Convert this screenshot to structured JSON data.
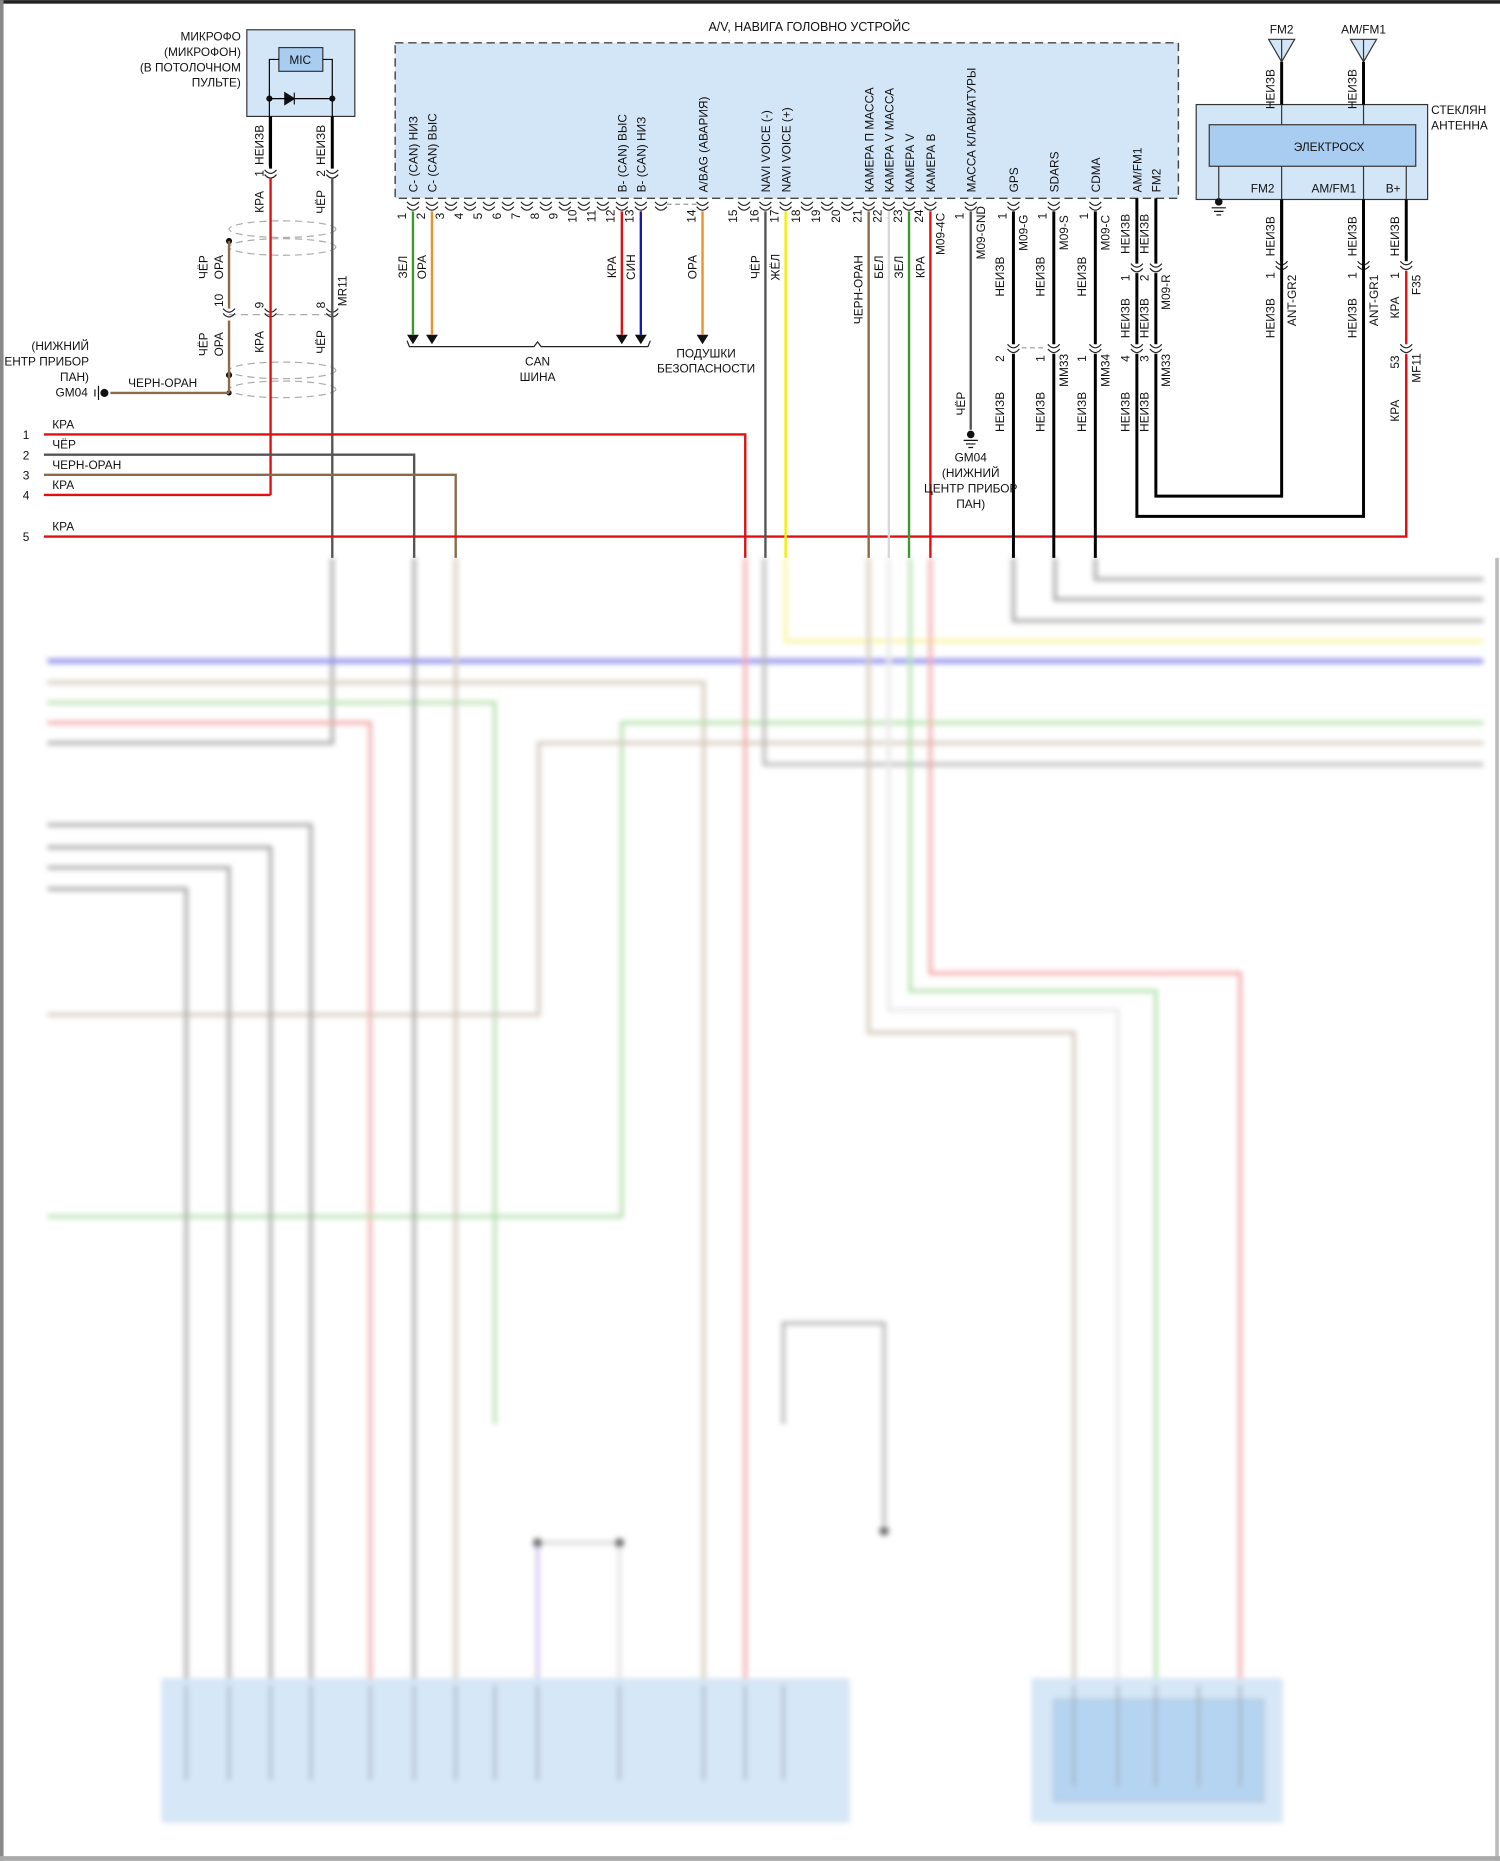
{
  "head_unit": {
    "title": "A/V, НАВИГА ГОЛОВНО УСТРОЙС",
    "pin_numbers": [
      "1",
      "2",
      "3",
      "4",
      "5",
      "6",
      "7",
      "8",
      "9",
      "10",
      "11",
      "12",
      "13",
      "14",
      "15",
      "16",
      "17",
      "18",
      "19",
      "20",
      "21",
      "22",
      "23",
      "24"
    ],
    "pin_labels": [
      {
        "pin": 1,
        "label": "C- (CAN) НИЗ"
      },
      {
        "pin": 2,
        "label": "C- (CAN) ВЫС"
      },
      {
        "pin": 12,
        "label": "B- (CAN) ВЫС"
      },
      {
        "pin": 13,
        "label": "B- (CAN) НИЗ"
      },
      {
        "pin": 14,
        "label": "A/BAG (АВАРИЯ)"
      },
      {
        "pin": 16,
        "label": "NAVI VOICE (-)"
      },
      {
        "pin": 17,
        "label": "NAVI VOICE (+)"
      },
      {
        "pin": 21,
        "label": "КАМЕРА П МАССА"
      },
      {
        "pin": 22,
        "label": "КАМЕРА V МАССА"
      },
      {
        "pin": 23,
        "label": "КАМЕРА V"
      },
      {
        "pin": 24,
        "label": "КАМЕРА В"
      }
    ],
    "wires": [
      {
        "pin": 1,
        "label": "ЗЕЛ",
        "color": "#3c9a2c"
      },
      {
        "pin": 2,
        "label": "ОРА",
        "color": "#e8922a"
      },
      {
        "pin": 12,
        "label": "КРА",
        "color": "#e01010"
      },
      {
        "pin": 13,
        "label": "СИН",
        "color": "#1a1aa8"
      },
      {
        "pin": 14,
        "label": "ОРА",
        "color": "#e8922a"
      },
      {
        "pin": 16,
        "label": "ЧЁР",
        "color": "#555555"
      },
      {
        "pin": 17,
        "label": "ЖЁЛ",
        "color": "#f2f000"
      },
      {
        "pin": 21,
        "label": "ЧЕРН-ОРАН",
        "color": "#8a6a48"
      },
      {
        "pin": 22,
        "label": "БЕЛ",
        "color": "#d8d8d8"
      },
      {
        "pin": 23,
        "label": "ЗЕЛ",
        "color": "#3c9a2c"
      },
      {
        "pin": 24,
        "label": "КРА",
        "color": "#e01010"
      }
    ],
    "camera_connector": "M09-4C"
  },
  "can_bus": {
    "label_lines": [
      "CAN",
      "ШИНА"
    ]
  },
  "airbag": {
    "label_lines": [
      "ПОДУШКИ",
      "БЕЗОПАСНОСТИ"
    ]
  },
  "aux_connectors": [
    {
      "title": "МАССА КЛАВИАТУРЫ",
      "pin": "1",
      "connector": "M09-GND",
      "wire_lower": "ЧЁР"
    },
    {
      "title": "GPS",
      "pin": "1",
      "connector": "M09-G",
      "wire_upper": "НЕИЗВ",
      "inline_pin": "2",
      "wire_lower": "НЕИЗВ"
    },
    {
      "title": "SDARS",
      "pin": "1",
      "connector": "M09-S",
      "wire_upper": "НЕИЗВ",
      "inline_pin": "1",
      "inline_connector": "MM33",
      "wire_lower": "НЕИЗВ"
    },
    {
      "title": "CDMA",
      "pin": "1",
      "connector": "M09-C",
      "wire_upper": "НЕИЗВ",
      "inline_pin": "1",
      "inline_connector": "MM34",
      "wire_lower": "НЕИЗВ"
    },
    {
      "title": "AM/FM1",
      "wire_top": "НЕИЗВ",
      "pin": "1",
      "wire_upper": "НЕИЗВ",
      "inline_pin": "4",
      "wire_lower": "НЕИЗВ"
    },
    {
      "title": "FM2",
      "wire_top": "НЕИЗВ",
      "pin": "2",
      "connector": "M09-R",
      "wire_upper": "НЕИЗВ",
      "inline_pin": "3",
      "inline_connector": "MM33",
      "wire_lower": "НЕИЗВ"
    }
  ],
  "ground_center": {
    "id": "GM04",
    "location_lines": [
      "(НИЖНИЙ",
      "ЦЕНТР ПРИБОР",
      "ПАН)"
    ]
  },
  "microphone": {
    "name_lines": [
      "МИКРОФО",
      "(МИКРОФОН)",
      "(В ПОТОЛОЧНОМ",
      "ПУЛЬТЕ)"
    ],
    "chip": "MIC",
    "pins": [
      {
        "num": "1",
        "wire_top": "НЕИЗВ",
        "wire_bottom": "КРА"
      },
      {
        "num": "2",
        "wire_top": "НЕИЗВ",
        "wire_bottom": "ЧЁР"
      }
    ]
  },
  "shield_connector": {
    "id": "MR11",
    "pins": [
      "10",
      "9",
      "8"
    ],
    "drain_upper": [
      "ЧЁР",
      "ОРА"
    ],
    "drain_lower": [
      "ЧЁР",
      "ОРА"
    ],
    "wire_9": "КРА",
    "wire_8": "ЧЁР",
    "ground_wire": "ЧЕРН-ОРАН"
  },
  "ground_left": {
    "id": "GM04",
    "location_lines": [
      "(НИЖНИЙ",
      "ЕНТР ПРИБОР",
      "ПАН)"
    ]
  },
  "harness_lines": [
    {
      "num": "1",
      "color_name": "КРА",
      "color": "#e01010"
    },
    {
      "num": "2",
      "color_name": "ЧЁР",
      "color": "#555555"
    },
    {
      "num": "3",
      "color_name": "ЧЕРН-ОРАН",
      "color": "#8a6a48"
    },
    {
      "num": "4",
      "color_name": "КРА",
      "color": "#e01010"
    },
    {
      "num": "5",
      "color_name": "КРА",
      "color": "#e01010"
    }
  ],
  "antenna": {
    "module_lines": [
      "СТЕКЛЯН",
      "АНТЕННА"
    ],
    "chip": "ЭЛЕКТРОСХ",
    "aerials": [
      {
        "name": "FM2",
        "wire": "НЕИЗВ"
      },
      {
        "name": "AM/FM1",
        "wire": "НЕИЗВ"
      }
    ],
    "terminals": [
      {
        "name": "FM2",
        "wire_upper": "НЕИЗВ",
        "pin": "1",
        "connector": "ANT-GR2",
        "wire_lower": "НЕИЗВ"
      },
      {
        "name": "AM/FM1",
        "wire_upper": "НЕИЗВ",
        "pin": "1",
        "connector": "ANT-GR1",
        "wire_lower": "НЕИЗВ"
      },
      {
        "name": "B+",
        "wire_upper": "НЕИЗВ",
        "pin": "1",
        "connector": "F35",
        "wire_mid": "КРА",
        "inline_pin": "53",
        "inline_connector": "MF11",
        "wire_lower": "КРА"
      }
    ]
  },
  "colors": {
    "component_fill": "#d3e6f7",
    "chip_fill": "#a9cdf0",
    "unspecified_wire": "#000000"
  }
}
